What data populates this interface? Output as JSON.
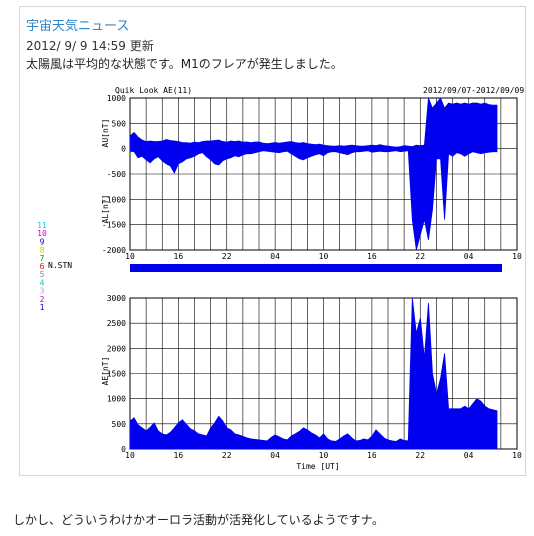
{
  "post": {
    "title": "宇宙天気ニュース",
    "updated": "2012/ 9/ 9 14:59  更新",
    "description": "太陽風は平均的な状態です。M1のフレアが発生しました。",
    "caption": "しかし、どういうわけかオーロラ活動が活発化しているようですナ。"
  },
  "chart_data": {
    "type": "line",
    "title": "Quik Look AE(11)",
    "date_range": "2012/09/07-2012/09/09",
    "xlabel": "Time [UT]",
    "x_ticks": [
      "10",
      "16",
      "22",
      "04",
      "10",
      "16",
      "22",
      "04",
      "10"
    ],
    "colors": {
      "fill": "#0000ee",
      "axis": "#000000",
      "grid": "#000000"
    },
    "station_label": "N.STN",
    "station_levels": [
      {
        "label": "11",
        "color": "#00ccff"
      },
      {
        "label": "10",
        "color": "#cc00cc"
      },
      {
        "label": "9",
        "color": "#0000cc"
      },
      {
        "label": "8",
        "color": "#cccc00"
      },
      {
        "label": "7",
        "color": "#00aa00"
      },
      {
        "label": "6",
        "color": "#ee0000"
      },
      {
        "label": "5",
        "color": "#888888"
      },
      {
        "label": "4",
        "color": "#00cccc"
      },
      {
        "label": "3",
        "color": "#aaaaaa"
      },
      {
        "label": "2",
        "color": "#cc00cc"
      },
      {
        "label": "1",
        "color": "#0000aa"
      }
    ],
    "upper_panel": {
      "ylabel_top": "AU[nT]",
      "ylabel_bottom": "AL[nT]",
      "ylim": [
        -2000,
        1000
      ],
      "y_ticks": [
        "1000",
        "500",
        "0",
        "-500",
        "-1000",
        "-1500",
        "-2000"
      ],
      "au": [
        250,
        320,
        230,
        170,
        140,
        150,
        140,
        140,
        150,
        180,
        160,
        150,
        140,
        120,
        120,
        110,
        130,
        120,
        140,
        150,
        150,
        160,
        170,
        140,
        130,
        150,
        140,
        150,
        130,
        130,
        120,
        130,
        130,
        110,
        100,
        110,
        120,
        110,
        120,
        130,
        140,
        120,
        110,
        120,
        100,
        90,
        80,
        90,
        70,
        60,
        50,
        50,
        60,
        50,
        60,
        70,
        60,
        50,
        50,
        60,
        70,
        60,
        80,
        60,
        50,
        40,
        30,
        40,
        60,
        50,
        40,
        70,
        60,
        70,
        1000,
        800,
        900,
        1000,
        800,
        900,
        880,
        900,
        880,
        900,
        880,
        900,
        900,
        880,
        900,
        870,
        860,
        860
      ],
      "al": [
        -50,
        -60,
        -180,
        -150,
        -220,
        -280,
        -200,
        -160,
        -240,
        -300,
        -340,
        -480,
        -300,
        -260,
        -200,
        -180,
        -150,
        -100,
        -80,
        -160,
        -220,
        -300,
        -320,
        -240,
        -200,
        -180,
        -140,
        -160,
        -120,
        -100,
        -100,
        -80,
        -60,
        -40,
        -50,
        -60,
        -70,
        -80,
        -60,
        -50,
        -100,
        -150,
        -200,
        -220,
        -180,
        -150,
        -120,
        -100,
        -140,
        -80,
        -60,
        -60,
        -80,
        -100,
        -120,
        -80,
        -60,
        -60,
        -50,
        -40,
        -70,
        -60,
        -50,
        -60,
        -60,
        -50,
        -40,
        -60,
        -50,
        -40,
        -1400,
        -2000,
        -1700,
        -1400,
        -1800,
        -1200,
        -200,
        -200,
        -1400,
        -100,
        -150,
        -80,
        -100,
        -150,
        -100,
        -60,
        -80,
        -100,
        -80,
        -70,
        -60,
        -60
      ]
    },
    "lower_panel": {
      "ylabel": "AE[nT]",
      "ylim": [
        0,
        3000
      ],
      "y_ticks": [
        "3000",
        "2500",
        "2000",
        "1500",
        "1000",
        "500",
        "0"
      ],
      "ae": [
        550,
        620,
        480,
        420,
        360,
        430,
        520,
        360,
        300,
        280,
        330,
        420,
        520,
        580,
        490,
        400,
        360,
        300,
        280,
        260,
        420,
        520,
        650,
        560,
        420,
        380,
        300,
        280,
        250,
        220,
        200,
        190,
        180,
        170,
        160,
        230,
        280,
        240,
        200,
        180,
        260,
        300,
        350,
        420,
        380,
        320,
        280,
        220,
        300,
        200,
        160,
        150,
        200,
        260,
        300,
        220,
        160,
        170,
        200,
        180,
        260,
        380,
        300,
        220,
        180,
        160,
        150,
        200,
        170,
        160,
        3000,
        2300,
        2600,
        1800,
        2900,
        1500,
        1100,
        1400,
        1900,
        800,
        800,
        800,
        800,
        850,
        800,
        900,
        1000,
        950,
        850,
        800,
        780,
        760
      ]
    }
  }
}
